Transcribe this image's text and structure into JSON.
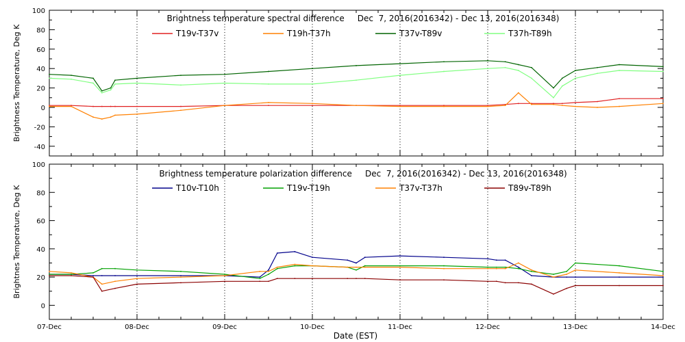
{
  "figure": {
    "xlabel": "Date (EST)"
  },
  "chart_data": [
    {
      "type": "line",
      "title": "Brightness temperature spectral difference     Dec  7, 2016(2016342) - Dec 13, 2016(2016348)",
      "ylabel": "Brightness Temperature, Deg K",
      "xlabel": "",
      "x_ticks": [
        "07-Dec",
        "08-Dec",
        "09-Dec",
        "10-Dec",
        "11-Dec",
        "12-Dec",
        "13-Dec",
        "14-Dec"
      ],
      "xlim": [
        0,
        7
      ],
      "ylim": [
        -50,
        100
      ],
      "y_ticks": [
        -40,
        -20,
        0,
        20,
        40,
        60,
        80,
        100
      ],
      "grid": "vertical dotted at day boundaries",
      "legend_placement": "top",
      "x": [
        0,
        0.25,
        0.5,
        0.6,
        0.7,
        0.75,
        1.0,
        1.5,
        2.0,
        2.5,
        3.0,
        3.5,
        4.0,
        4.5,
        5.0,
        5.2,
        5.35,
        5.5,
        5.75,
        5.85,
        6.0,
        6.25,
        6.5,
        7.0
      ],
      "series": [
        {
          "name": "T19v-T37v",
          "color": "#e02020",
          "values": [
            2,
            2,
            1,
            1,
            1,
            1,
            1,
            1,
            2,
            2,
            2,
            2,
            2,
            2,
            2,
            3,
            4,
            4,
            4,
            4,
            5,
            6,
            9,
            9
          ]
        },
        {
          "name": "T19h-T37h",
          "color": "#ff8000",
          "values": [
            1,
            1,
            -10,
            -12,
            -10,
            -8,
            -7,
            -3,
            2,
            5,
            4,
            2,
            1,
            1,
            1,
            2,
            15,
            3,
            3,
            2,
            1,
            0,
            1,
            4
          ]
        },
        {
          "name": "T37v-T89v",
          "color": "#006400",
          "values": [
            34,
            33,
            30,
            17,
            20,
            28,
            30,
            33,
            34,
            37,
            40,
            43,
            45,
            47,
            48,
            47,
            44,
            41,
            20,
            30,
            38,
            41,
            44,
            42
          ]
        },
        {
          "name": "T37h-T89h",
          "color": "#80ff80",
          "values": [
            30,
            29,
            25,
            15,
            18,
            24,
            25,
            23,
            25,
            24,
            24,
            28,
            33,
            37,
            40,
            41,
            38,
            30,
            10,
            22,
            30,
            35,
            38,
            37
          ]
        }
      ]
    },
    {
      "type": "line",
      "title": "Brightness temperature polarization difference     Dec  7, 2016(2016342) - Dec 13, 2016(2016348)",
      "ylabel": "Brightnes Temperature, Deg K",
      "xlabel": "Date (EST)",
      "x_ticks": [
        "07-Dec",
        "08-Dec",
        "09-Dec",
        "10-Dec",
        "11-Dec",
        "12-Dec",
        "13-Dec",
        "14-Dec"
      ],
      "xlim": [
        0,
        7
      ],
      "ylim": [
        -10,
        100
      ],
      "y_ticks": [
        0,
        20,
        40,
        60,
        80,
        100
      ],
      "grid": "vertical dotted at day boundaries",
      "legend_placement": "top",
      "x": [
        0,
        0.25,
        0.5,
        0.6,
        0.75,
        1.0,
        1.5,
        2.0,
        2.4,
        2.5,
        2.6,
        2.8,
        3.0,
        3.4,
        3.5,
        3.6,
        4.0,
        4.5,
        5.0,
        5.1,
        5.2,
        5.35,
        5.5,
        5.75,
        5.9,
        6.0,
        6.5,
        7.0
      ],
      "series": [
        {
          "name": "T10v-T10h",
          "color": "#00008b",
          "values": [
            22,
            22,
            21,
            21,
            21,
            21,
            21,
            21,
            20,
            25,
            37,
            38,
            34,
            32,
            30,
            34,
            35,
            34,
            33,
            32,
            32,
            27,
            21,
            20,
            20,
            20,
            20,
            20
          ]
        },
        {
          "name": "T19v-T19h",
          "color": "#00a000",
          "values": [
            22,
            22,
            23,
            26,
            26,
            25,
            24,
            22,
            19,
            22,
            26,
            28,
            28,
            27,
            25,
            28,
            28,
            28,
            27,
            27,
            27,
            26,
            24,
            22,
            24,
            30,
            28,
            24
          ]
        },
        {
          "name": "T37v-T37h",
          "color": "#ff8000",
          "values": [
            24,
            23,
            20,
            15,
            17,
            19,
            20,
            21,
            24,
            24,
            27,
            29,
            28,
            27,
            27,
            27,
            27,
            26,
            26,
            26,
            26,
            30,
            25,
            20,
            22,
            25,
            23,
            21
          ]
        },
        {
          "name": "T89v-T89h",
          "color": "#8b0000",
          "values": [
            21,
            21,
            20,
            10,
            12,
            15,
            16,
            17,
            17,
            17,
            19,
            19,
            19,
            19,
            19,
            19,
            18,
            18,
            17,
            17,
            16,
            16,
            15,
            8,
            12,
            14,
            14,
            14
          ]
        }
      ]
    }
  ]
}
